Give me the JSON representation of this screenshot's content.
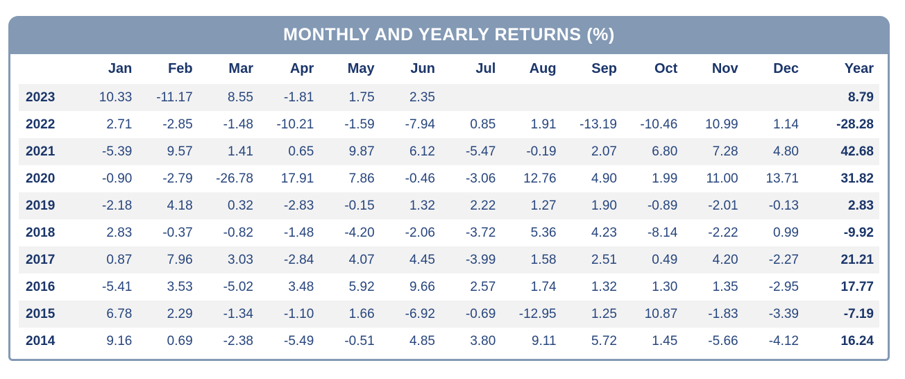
{
  "title": "MONTHLY AND YEARLY RETURNS (%)",
  "colors": {
    "bar": "#8399b4",
    "heading_text": "#1a3569",
    "value_text": "#27457d",
    "stripe": "#f2f2f2",
    "background": "#ffffff"
  },
  "chart_data": {
    "type": "table",
    "title": "MONTHLY AND YEARLY RETURNS (%)",
    "columns": [
      "",
      "Jan",
      "Feb",
      "Mar",
      "Apr",
      "May",
      "Jun",
      "Jul",
      "Aug",
      "Sep",
      "Oct",
      "Nov",
      "Dec",
      "Year"
    ],
    "rows": [
      {
        "year": "2023",
        "values": [
          "10.33",
          "-11.17",
          "8.55",
          "-1.81",
          "1.75",
          "2.35",
          "",
          "",
          "",
          "",
          "",
          "",
          "8.79"
        ]
      },
      {
        "year": "2022",
        "values": [
          "2.71",
          "-2.85",
          "-1.48",
          "-10.21",
          "-1.59",
          "-7.94",
          "0.85",
          "1.91",
          "-13.19",
          "-10.46",
          "10.99",
          "1.14",
          "-28.28"
        ]
      },
      {
        "year": "2021",
        "values": [
          "-5.39",
          "9.57",
          "1.41",
          "0.65",
          "9.87",
          "6.12",
          "-5.47",
          "-0.19",
          "2.07",
          "6.80",
          "7.28",
          "4.80",
          "42.68"
        ]
      },
      {
        "year": "2020",
        "values": [
          "-0.90",
          "-2.79",
          "-26.78",
          "17.91",
          "7.86",
          "-0.46",
          "-3.06",
          "12.76",
          "4.90",
          "1.99",
          "11.00",
          "13.71",
          "31.82"
        ]
      },
      {
        "year": "2019",
        "values": [
          "-2.18",
          "4.18",
          "0.32",
          "-2.83",
          "-0.15",
          "1.32",
          "2.22",
          "1.27",
          "1.90",
          "-0.89",
          "-2.01",
          "-0.13",
          "2.83"
        ]
      },
      {
        "year": "2018",
        "values": [
          "2.83",
          "-0.37",
          "-0.82",
          "-1.48",
          "-4.20",
          "-2.06",
          "-3.72",
          "5.36",
          "4.23",
          "-8.14",
          "-2.22",
          "0.99",
          "-9.92"
        ]
      },
      {
        "year": "2017",
        "values": [
          "0.87",
          "7.96",
          "3.03",
          "-2.84",
          "4.07",
          "4.45",
          "-3.99",
          "1.58",
          "2.51",
          "0.49",
          "4.20",
          "-2.27",
          "21.21"
        ]
      },
      {
        "year": "2016",
        "values": [
          "-5.41",
          "3.53",
          "-5.02",
          "3.48",
          "5.92",
          "9.66",
          "2.57",
          "1.74",
          "1.32",
          "1.30",
          "1.35",
          "-2.95",
          "17.77"
        ]
      },
      {
        "year": "2015",
        "values": [
          "6.78",
          "2.29",
          "-1.34",
          "-1.10",
          "1.66",
          "-6.92",
          "-0.69",
          "-12.95",
          "1.25",
          "10.87",
          "-1.83",
          "-3.39",
          "-7.19"
        ]
      },
      {
        "year": "2014",
        "values": [
          "9.16",
          "0.69",
          "-2.38",
          "-5.49",
          "-0.51",
          "4.85",
          "3.80",
          "9.11",
          "5.72",
          "1.45",
          "-5.66",
          "-4.12",
          "16.24"
        ]
      }
    ]
  }
}
